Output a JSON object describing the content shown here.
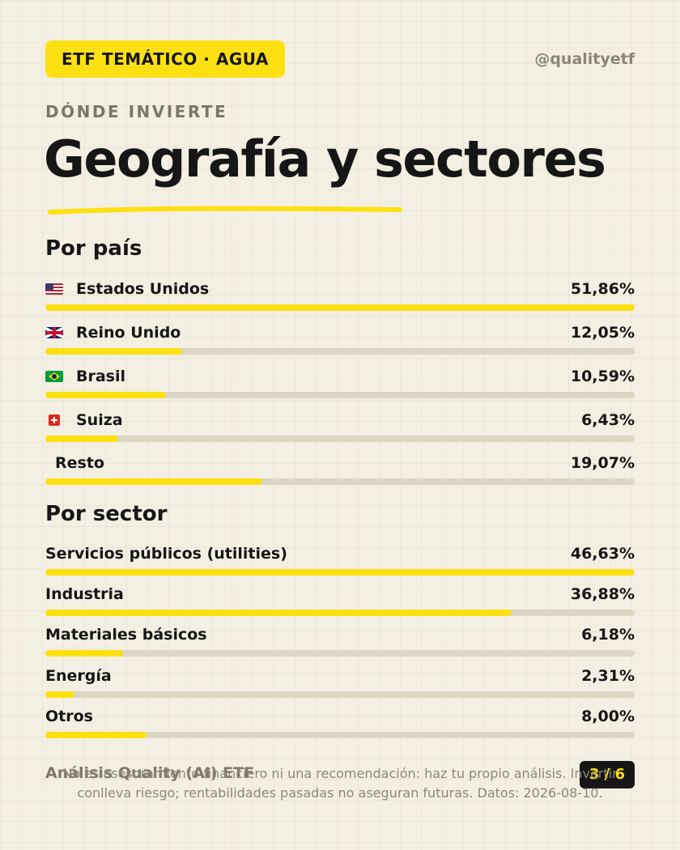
{
  "header": {
    "badge": "ETF TEMÁTICO · AGUA",
    "handle": "@qualityetf"
  },
  "kicker": "DÓNDE INVIERTE",
  "title": "Geografía y sectores",
  "accent_color": "#fde012",
  "track_color": "#dcd6c5",
  "countries": {
    "title": "Por país",
    "items": [
      {
        "label": "Estados Unidos",
        "value": "51,86%",
        "pct": 51.86,
        "flag": "us-flag-icon"
      },
      {
        "label": "Reino Unido",
        "value": "12,05%",
        "pct": 12.05,
        "flag": "uk-flag-icon"
      },
      {
        "label": "Brasil",
        "value": "10,59%",
        "pct": 10.59,
        "flag": "brazil-flag-icon"
      },
      {
        "label": "Suiza",
        "value": "6,43%",
        "pct": 6.43,
        "flag": "swiss-flag-icon"
      },
      {
        "label": "Resto",
        "value": "19,07%",
        "pct": 19.07,
        "flag": ""
      }
    ]
  },
  "sectors": {
    "title": "Por sector",
    "items": [
      {
        "label": "Servicios públicos (utilities)",
        "value": "46,63%",
        "pct": 46.63
      },
      {
        "label": "Industria",
        "value": "36,88%",
        "pct": 36.88
      },
      {
        "label": "Materiales básicos",
        "value": "6,18%",
        "pct": 6.18
      },
      {
        "label": "Energía",
        "value": "2,31%",
        "pct": 2.31
      },
      {
        "label": "Otros",
        "value": "8,00%",
        "pct": 8.0
      }
    ]
  },
  "footer": {
    "brand": "Análisis Quality (AI) ETF",
    "page": "3 / 6",
    "disclaimer": "No es asesoramiento financiero ni una recomendación: haz tu propio análisis. Invertir conlleva riesgo; rentabilidades pasadas no aseguran futuras. Datos: 2026-08-10."
  }
}
